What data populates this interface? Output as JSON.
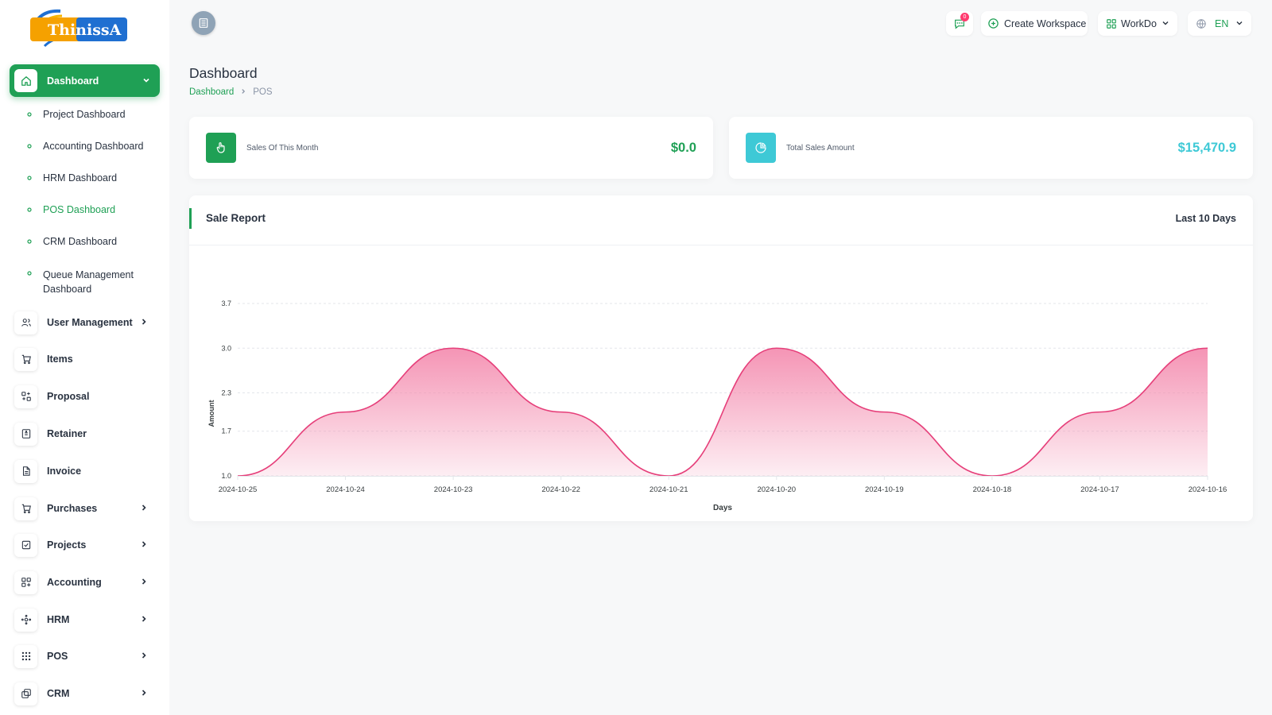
{
  "brand": {
    "logo_text": "ThinissA"
  },
  "sidebar": {
    "active_item": {
      "label": "Dashboard",
      "icon": "home-icon"
    },
    "sub_items": [
      {
        "label": "Project Dashboard"
      },
      {
        "label": "Accounting Dashboard"
      },
      {
        "label": "HRM Dashboard"
      },
      {
        "label": "POS Dashboard",
        "active": true
      },
      {
        "label": "CRM Dashboard"
      },
      {
        "label": "Queue Management Dashboard"
      }
    ],
    "items": [
      {
        "label": "User Management",
        "icon": "users-icon",
        "has_children": true
      },
      {
        "label": "Items",
        "icon": "cart-icon",
        "has_children": false
      },
      {
        "label": "Proposal",
        "icon": "proposal-icon",
        "has_children": false
      },
      {
        "label": "Retainer",
        "icon": "retainer-icon",
        "has_children": false
      },
      {
        "label": "Invoice",
        "icon": "invoice-icon",
        "has_children": false
      },
      {
        "label": "Purchases",
        "icon": "cart-icon",
        "has_children": true
      },
      {
        "label": "Projects",
        "icon": "checklist-icon",
        "has_children": true
      },
      {
        "label": "Accounting",
        "icon": "grid-plus-icon",
        "has_children": true
      },
      {
        "label": "HRM",
        "icon": "hrm-icon",
        "has_children": true
      },
      {
        "label": "POS",
        "icon": "dots-grid-icon",
        "has_children": true
      },
      {
        "label": "CRM",
        "icon": "layers-icon",
        "has_children": true
      }
    ]
  },
  "header": {
    "messages_count": "0",
    "create_workspace_label": "Create Workspace",
    "workspace_label": "WorkDo",
    "language_label": "EN"
  },
  "page": {
    "title": "Dashboard",
    "breadcrumb": [
      "Dashboard",
      "POS"
    ]
  },
  "stats": [
    {
      "label": "Sales Of This Month",
      "value": "$0.0",
      "color": "#1fa055",
      "icon": "hand-pointer-icon"
    },
    {
      "label": "Total Sales Amount",
      "value": "$15,470.9",
      "color": "#3ec9d6",
      "icon": "pie-chart-icon"
    }
  ],
  "report": {
    "title": "Sale Report",
    "filter_label": "Last 10 Days"
  },
  "chart_data": {
    "type": "area",
    "x": [
      "2024-10-25",
      "2024-10-24",
      "2024-10-23",
      "2024-10-22",
      "2024-10-21",
      "2024-10-20",
      "2024-10-19",
      "2024-10-18",
      "2024-10-17",
      "2024-10-16"
    ],
    "series": [
      {
        "values": [
          1.0,
          2.0,
          3.0,
          2.0,
          1.0,
          3.0,
          2.0,
          1.0,
          2.0,
          3.0
        ]
      }
    ],
    "xlabel": "Days",
    "ylabel": "Amount",
    "yticks": [
      "1.0",
      "1.7",
      "2.3",
      "3.0",
      "3.7"
    ],
    "ylim": [
      1.0,
      3.7
    ],
    "grid": true,
    "line_color": "#e63f7a",
    "fill_color": "#f48fb1"
  }
}
